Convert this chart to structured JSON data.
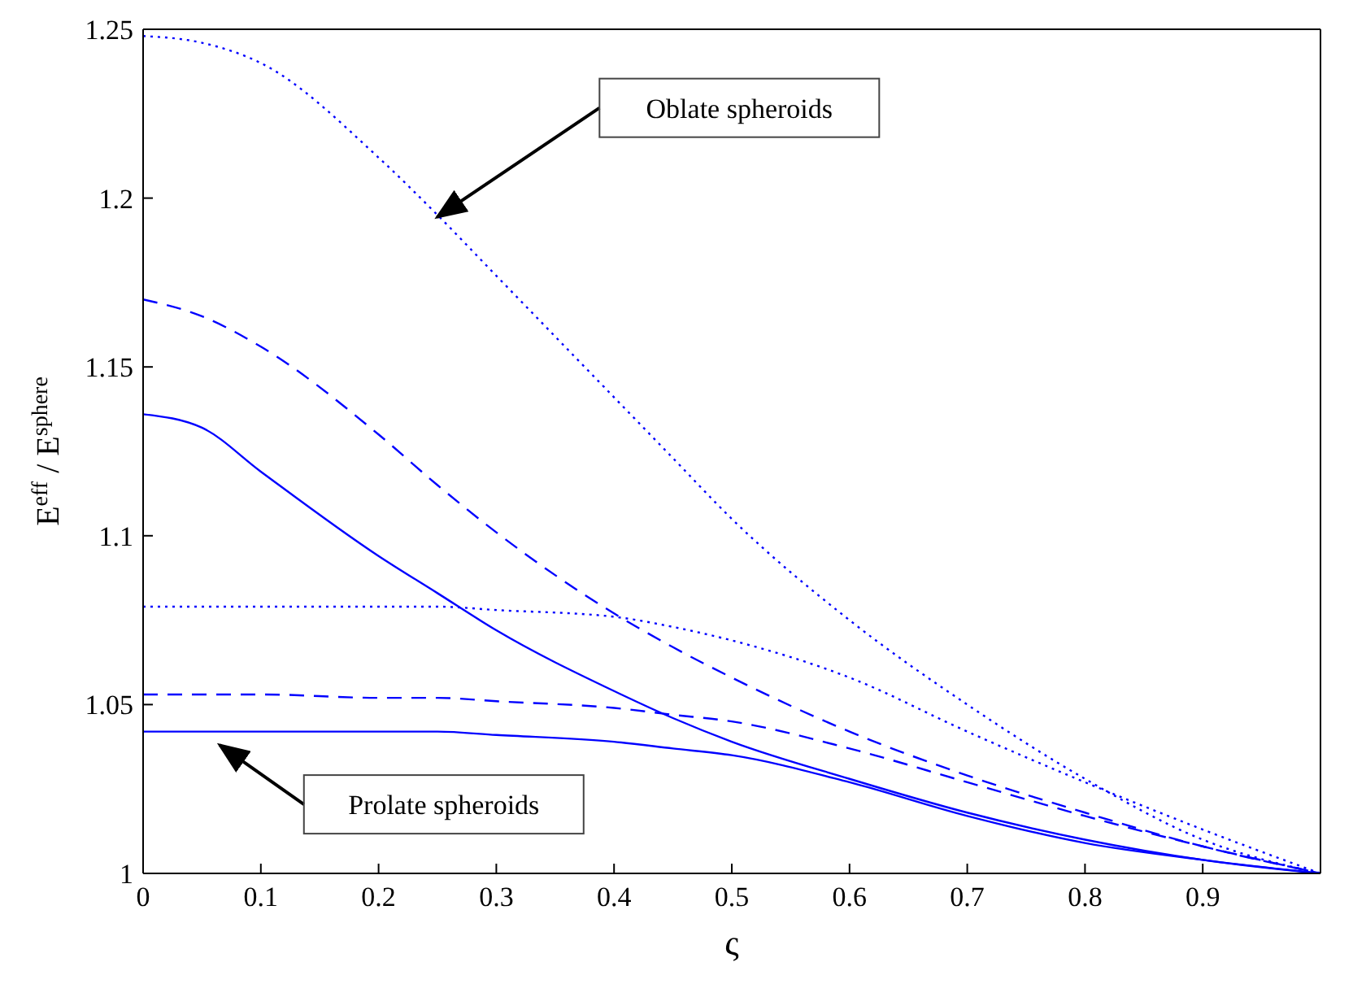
{
  "chart_data": {
    "type": "line",
    "xlabel": "ς",
    "ylabel": "E$^{eff}$ / E$^{sphere}$",
    "x": [
      0,
      0.05,
      0.1,
      0.2,
      0.25,
      0.3,
      0.4,
      0.45,
      0.5,
      0.6,
      0.7,
      0.8,
      0.9,
      1
    ],
    "xlim": [
      0,
      1
    ],
    "xticks": [
      0,
      0.1,
      0.2,
      0.3,
      0.4,
      0.5,
      0.6,
      0.7,
      0.8,
      0.9
    ],
    "ylim": [
      1,
      1.25
    ],
    "yticks": [
      1,
      1.05,
      1.1,
      1.15,
      1.2,
      1.25
    ],
    "marker": "none",
    "series": [
      {
        "color": "#0000ff",
        "line_style": "dotted",
        "values": [
          1.248,
          1.246,
          1.24,
          1.212,
          1.195,
          1.177,
          1.141,
          1.123,
          1.105,
          1.075,
          1.05,
          1.028,
          1.01,
          1.0
        ]
      },
      {
        "color": "#0000ff",
        "line_style": "dashed",
        "values": [
          1.17,
          1.165,
          1.156,
          1.13,
          1.115,
          1.101,
          1.077,
          1.067,
          1.058,
          1.042,
          1.029,
          1.018,
          1.008,
          1.0
        ]
      },
      {
        "color": "#0000ff",
        "line_style": "solid",
        "values": [
          1.136,
          1.132,
          1.119,
          1.094,
          1.083,
          1.072,
          1.054,
          1.046,
          1.039,
          1.028,
          1.018,
          1.01,
          1.004,
          1.0
        ]
      },
      {
        "color": "#0000ff",
        "line_style": "dotted",
        "values": [
          1.079,
          1.079,
          1.079,
          1.079,
          1.079,
          1.078,
          1.076,
          1.073,
          1.069,
          1.058,
          1.042,
          1.027,
          1.013,
          1.0
        ]
      },
      {
        "color": "#0000ff",
        "line_style": "dashed",
        "values": [
          1.053,
          1.053,
          1.053,
          1.052,
          1.052,
          1.051,
          1.049,
          1.047,
          1.045,
          1.037,
          1.027,
          1.017,
          1.008,
          1.0
        ]
      },
      {
        "color": "#0000ff",
        "line_style": "solid",
        "values": [
          1.042,
          1.042,
          1.042,
          1.042,
          1.042,
          1.041,
          1.039,
          1.037,
          1.035,
          1.027,
          1.017,
          1.009,
          1.004,
          1.0
        ]
      }
    ],
    "annotations": [
      "Oblate spheroids",
      "Prolate spheroids"
    ]
  }
}
